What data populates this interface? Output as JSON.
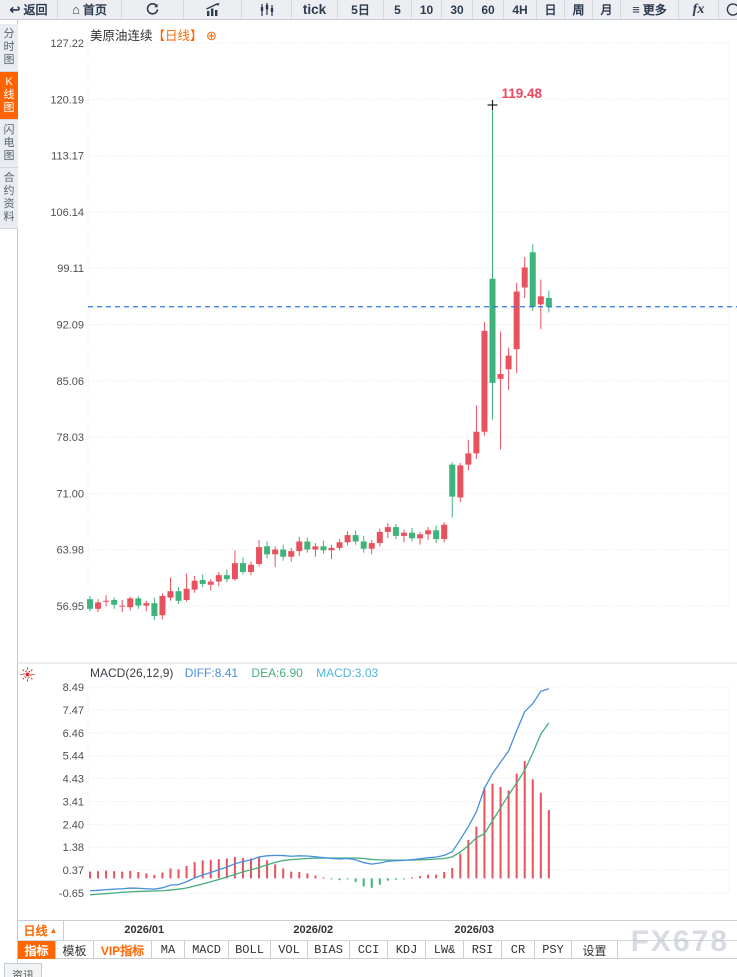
{
  "toolbar": {
    "items": [
      {
        "label": "返回",
        "icon": "↩"
      },
      {
        "label": "首页",
        "icon": "⌂"
      },
      {
        "icon_name": "refresh-icon"
      },
      {
        "icon_name": "bar-chart-icon"
      },
      {
        "icon_name": "candlestick-icon"
      },
      {
        "label": "tick"
      },
      {
        "label": "5日"
      },
      {
        "label": "5"
      },
      {
        "label": "10"
      },
      {
        "label": "30"
      },
      {
        "label": "60"
      },
      {
        "label": "4H"
      },
      {
        "label": "日"
      },
      {
        "label": "周"
      },
      {
        "label": "月"
      },
      {
        "label": "更多",
        "icon": "≡"
      },
      {
        "label": "fx"
      },
      {
        "icon_name": "clock-partial-icon"
      }
    ]
  },
  "sidebar": {
    "tabs": [
      {
        "label": "分时图",
        "active": false
      },
      {
        "label": "K线图",
        "active": true
      },
      {
        "label": "闪电图",
        "active": false
      },
      {
        "label": "合约资料",
        "active": false
      }
    ]
  },
  "chart_header": {
    "symbol": "美原油连续",
    "period_tag": "【日线】",
    "add_button": "⊕"
  },
  "macd_header": {
    "title": "MACD(26,12,9)",
    "diff": "DIFF:8.41",
    "dea": "DEA:6.90",
    "macd": "MACD:3.03"
  },
  "bottom_bar": {
    "period_selector": {
      "label": "日线",
      "arrow": "▲"
    },
    "tabs": [
      "指标",
      "模板",
      "VIP指标",
      "MA",
      "MACD",
      "BOLL",
      "VOL",
      "BIAS",
      "CCI",
      "KDJ",
      "LW&",
      "RSI",
      "CR",
      "PSY",
      "设置"
    ],
    "news_tab": "资讯"
  },
  "watermark": "FX678",
  "colors": {
    "accent": "#ff6600",
    "up": "#e8515e",
    "down": "#3eb37b",
    "diff_line": "#4a8fdc",
    "dea_line": "#45ae7c",
    "macd_value": "#4fb6d9",
    "current_price_line": "#2979e8",
    "annotation": "#f0455c",
    "grid": "#e7e7e7",
    "axis_text": "#4b5055"
  },
  "chart_data": {
    "type": "candlestick+macd",
    "title": "美原油连续【日线】",
    "price_axis_labels": [
      "127.22",
      "120.19",
      "113.17",
      "106.14",
      "99.11",
      "92.09",
      "85.06",
      "78.03",
      "71.00",
      "63.98",
      "56.95"
    ],
    "macd_axis_labels": [
      "8.49",
      "7.47",
      "6.46",
      "5.44",
      "4.43",
      "3.41",
      "2.40",
      "1.38",
      "0.37",
      "-0.65"
    ],
    "x_labels": [
      {
        "label": "2026/01",
        "index": 7
      },
      {
        "label": "2026/02",
        "index": 28
      },
      {
        "label": "2026/03",
        "index": 48
      }
    ],
    "current_price": 94.3,
    "high_annotation": {
      "index": 50,
      "price": 119.48,
      "label": "119.48"
    },
    "macd_values": {
      "diff": 8.41,
      "dea": 6.9,
      "macd": 3.03
    },
    "candles_ohlc": [
      [
        57.8,
        58.2,
        56.3,
        56.6
      ],
      [
        56.6,
        57.8,
        56.2,
        57.4
      ],
      [
        57.5,
        58.3,
        56.9,
        57.6
      ],
      [
        57.7,
        58.0,
        56.6,
        57.1
      ],
      [
        57.0,
        57.7,
        56.2,
        57.0
      ],
      [
        56.8,
        58.1,
        56.4,
        57.9
      ],
      [
        57.9,
        58.2,
        56.6,
        57.0
      ],
      [
        57.0,
        57.6,
        56.3,
        57.3
      ],
      [
        57.3,
        58.0,
        55.2,
        55.7
      ],
      [
        55.8,
        58.5,
        55.3,
        58.2
      ],
      [
        58.0,
        60.5,
        57.6,
        58.8
      ],
      [
        58.8,
        59.3,
        57.2,
        57.6
      ],
      [
        57.7,
        61.0,
        57.5,
        59.1
      ],
      [
        59.0,
        60.7,
        58.6,
        60.1
      ],
      [
        60.2,
        60.9,
        59.3,
        59.7
      ],
      [
        59.6,
        60.3,
        58.9,
        60.0
      ],
      [
        60.0,
        61.2,
        59.4,
        60.8
      ],
      [
        60.8,
        61.5,
        59.9,
        60.3
      ],
      [
        60.3,
        63.9,
        60.1,
        62.3
      ],
      [
        62.3,
        63.0,
        60.9,
        61.2
      ],
      [
        61.2,
        62.5,
        60.8,
        62.1
      ],
      [
        62.2,
        65.2,
        61.9,
        64.3
      ],
      [
        64.4,
        65.0,
        62.9,
        63.4
      ],
      [
        63.4,
        64.4,
        61.8,
        64.0
      ],
      [
        64.0,
        64.6,
        62.6,
        63.1
      ],
      [
        63.1,
        64.2,
        62.5,
        63.8
      ],
      [
        63.8,
        65.6,
        63.2,
        65.0
      ],
      [
        65.0,
        65.5,
        63.6,
        64.0
      ],
      [
        64.0,
        64.8,
        63.1,
        64.4
      ],
      [
        64.4,
        65.1,
        63.5,
        63.9
      ],
      [
        63.9,
        64.6,
        62.8,
        64.2
      ],
      [
        64.2,
        65.3,
        63.9,
        64.9
      ],
      [
        64.9,
        66.3,
        64.5,
        65.8
      ],
      [
        65.8,
        66.4,
        64.6,
        65.0
      ],
      [
        65.0,
        65.7,
        63.6,
        64.1
      ],
      [
        64.1,
        65.2,
        63.4,
        64.8
      ],
      [
        64.8,
        66.6,
        64.4,
        66.2
      ],
      [
        66.2,
        67.3,
        65.4,
        66.8
      ],
      [
        66.8,
        67.2,
        65.3,
        65.7
      ],
      [
        65.7,
        66.5,
        64.9,
        66.1
      ],
      [
        66.1,
        66.7,
        65.0,
        65.4
      ],
      [
        65.4,
        66.2,
        64.6,
        65.9
      ],
      [
        65.9,
        66.8,
        65.2,
        66.4
      ],
      [
        66.4,
        67.0,
        64.8,
        65.3
      ],
      [
        65.3,
        67.4,
        64.9,
        67.1
      ],
      [
        74.6,
        74.9,
        68.0,
        70.6
      ],
      [
        70.5,
        74.8,
        69.9,
        74.5
      ],
      [
        74.6,
        77.7,
        73.9,
        76.0
      ],
      [
        76.0,
        82.0,
        75.3,
        78.7
      ],
      [
        78.7,
        92.4,
        78.2,
        91.3
      ],
      [
        97.8,
        119.48,
        80.2,
        84.8
      ],
      [
        85.3,
        91.2,
        76.5,
        85.9
      ],
      [
        86.5,
        89.2,
        83.9,
        88.2
      ],
      [
        89.0,
        97.3,
        86.0,
        96.2
      ],
      [
        96.7,
        100.5,
        95.4,
        99.2
      ],
      [
        101.1,
        102.1,
        93.8,
        94.3
      ],
      [
        94.6,
        97.7,
        91.5,
        95.6
      ],
      [
        95.4,
        96.3,
        93.6,
        94.3
      ]
    ],
    "macd_hist": [
      0.3,
      0.32,
      0.34,
      0.32,
      0.3,
      0.33,
      0.28,
      0.22,
      0.15,
      0.26,
      0.44,
      0.4,
      0.55,
      0.72,
      0.8,
      0.82,
      0.85,
      0.88,
      0.95,
      0.9,
      0.88,
      0.95,
      0.8,
      0.62,
      0.44,
      0.3,
      0.28,
      0.22,
      0.12,
      0.04,
      -0.04,
      -0.08,
      -0.04,
      -0.16,
      -0.36,
      -0.42,
      -0.28,
      -0.1,
      -0.06,
      -0.02,
      0.04,
      0.1,
      0.16,
      0.16,
      0.28,
      0.46,
      1.1,
      1.7,
      2.3,
      4.05,
      4.2,
      4.05,
      3.9,
      4.65,
      5.2,
      4.4,
      3.8,
      3.03
    ],
    "macd_diff": [
      -0.55,
      -0.53,
      -0.5,
      -0.48,
      -0.46,
      -0.43,
      -0.44,
      -0.46,
      -0.48,
      -0.42,
      -0.3,
      -0.28,
      -0.15,
      0.02,
      0.15,
      0.26,
      0.38,
      0.5,
      0.65,
      0.74,
      0.82,
      0.95,
      1.0,
      1.02,
      1.01,
      0.98,
      1.0,
      0.99,
      0.96,
      0.92,
      0.88,
      0.86,
      0.88,
      0.82,
      0.7,
      0.63,
      0.68,
      0.76,
      0.78,
      0.8,
      0.83,
      0.87,
      0.92,
      0.94,
      1.02,
      1.18,
      1.72,
      2.3,
      2.95,
      4.0,
      4.65,
      5.15,
      5.65,
      6.55,
      7.4,
      7.75,
      8.3,
      8.41
    ],
    "macd_dea": [
      -0.73,
      -0.7,
      -0.68,
      -0.65,
      -0.62,
      -0.6,
      -0.58,
      -0.57,
      -0.56,
      -0.55,
      -0.52,
      -0.48,
      -0.43,
      -0.34,
      -0.25,
      -0.15,
      -0.05,
      0.06,
      0.17,
      0.29,
      0.38,
      0.48,
      0.6,
      0.71,
      0.79,
      0.83,
      0.86,
      0.88,
      0.9,
      0.9,
      0.9,
      0.9,
      0.9,
      0.9,
      0.88,
      0.84,
      0.82,
      0.81,
      0.81,
      0.81,
      0.81,
      0.82,
      0.84,
      0.86,
      0.88,
      0.95,
      1.17,
      1.45,
      1.8,
      1.98,
      2.55,
      3.13,
      3.7,
      4.23,
      4.8,
      5.55,
      6.4,
      6.9
    ]
  }
}
